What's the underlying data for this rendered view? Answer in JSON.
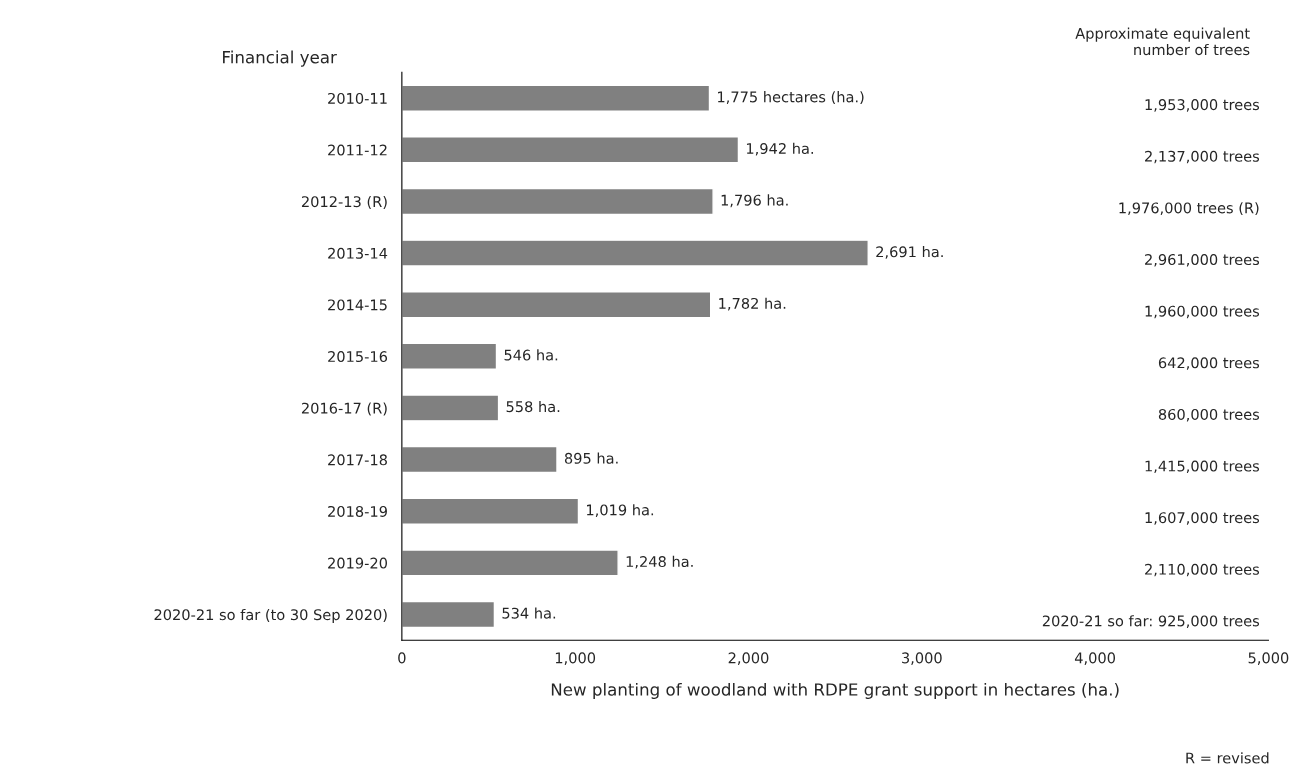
{
  "chart_data": {
    "type": "bar",
    "orientation": "horizontal",
    "ylabel": "Financial year",
    "xlabel": "New planting of woodland with RDPE grant support in hectares (ha.)",
    "categories": [
      "2010-11",
      "2011-12",
      "2012-13 (R)",
      "2013-14",
      "2014-15",
      "2015-16",
      "2016-17 (R)",
      "2017-18",
      "2018-19",
      "2019-20",
      "2020-21 so far (to 30 Sep 2020)"
    ],
    "values": [
      1775,
      1942,
      1796,
      2691,
      1782,
      546,
      558,
      895,
      1019,
      1248,
      534
    ],
    "value_labels": [
      "1,775 hectares (ha.)",
      "1,942 ha.",
      "1,796 ha.",
      "2,691 ha.",
      "1,782 ha.",
      "546 ha.",
      "558 ha.",
      "895 ha.",
      "1,019 ha.",
      "1,248 ha.",
      "534 ha."
    ],
    "color": "#808080",
    "xlim": [
      0,
      5000
    ],
    "xticks": [
      {
        "value": 0,
        "label": "0"
      },
      {
        "value": 1000,
        "label": "1,000"
      },
      {
        "value": 2000,
        "label": "2,000"
      },
      {
        "value": 3000,
        "label": "3,000"
      },
      {
        "value": 4000,
        "label": "4,000"
      },
      {
        "value": 5000,
        "label": "5,000"
      }
    ],
    "grid": false,
    "legend": false,
    "annotations": [
      "Approximate equivalent\nnumber of trees",
      "1,953,000 trees",
      "2,137,000 trees",
      "1,976,000 trees (R)",
      "2,961,000 trees",
      "1,960,000 trees",
      "642,000 trees",
      "860,000 trees",
      "1,415,000 trees",
      "1,607,000 trees",
      "2,110,000 trees",
      "2020-21 so far: 925,000 trees",
      "R = revised"
    ]
  }
}
